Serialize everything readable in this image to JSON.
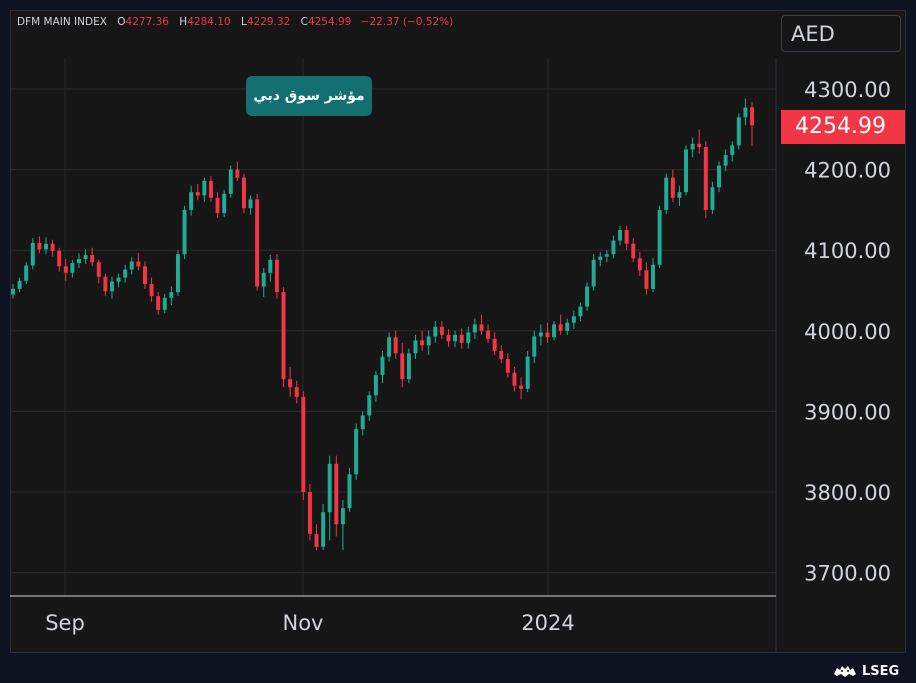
{
  "header": {
    "symbol": "DFM MAIN INDEX",
    "open_label": "O",
    "open": "4277.36",
    "high_label": "H",
    "high": "4284.10",
    "low_label": "L",
    "low": "4229.32",
    "close_label": "C",
    "close": "4254.99",
    "change": "−22.37 (−0.52%)"
  },
  "currency": "AED",
  "badge": "مؤشر سوق دبي",
  "last_price": "4254.99",
  "brand": "LSEG",
  "colors": {
    "up": "#22ab94",
    "down": "#f23645",
    "badge": "#136f72",
    "background": "#161616",
    "grid": "#2a2a2a"
  },
  "chart_data": {
    "type": "candlestick",
    "ylim": [
      3670,
      4320
    ],
    "y_ticks": [
      "4300.00",
      "4200.00",
      "4100.00",
      "4000.00",
      "3900.00",
      "3800.00",
      "3700.00"
    ],
    "x_ticks": [
      "Sep",
      "Nov",
      "2024"
    ],
    "grid": true,
    "candles": [
      [
        4045,
        4058,
        4040,
        4052
      ],
      [
        4052,
        4066,
        4048,
        4062
      ],
      [
        4062,
        4085,
        4058,
        4081
      ],
      [
        4081,
        4115,
        4076,
        4109
      ],
      [
        4109,
        4117,
        4096,
        4101
      ],
      [
        4101,
        4116,
        4095,
        4108
      ],
      [
        4108,
        4113,
        4092,
        4099
      ],
      [
        4099,
        4103,
        4073,
        4080
      ],
      [
        4080,
        4089,
        4062,
        4072
      ],
      [
        4072,
        4088,
        4066,
        4084
      ],
      [
        4084,
        4096,
        4078,
        4089
      ],
      [
        4089,
        4101,
        4083,
        4094
      ],
      [
        4094,
        4103,
        4080,
        4085
      ],
      [
        4085,
        4088,
        4059,
        4067
      ],
      [
        4067,
        4071,
        4043,
        4049
      ],
      [
        4049,
        4067,
        4040,
        4061
      ],
      [
        4061,
        4071,
        4054,
        4066
      ],
      [
        4066,
        4082,
        4060,
        4076
      ],
      [
        4076,
        4091,
        4070,
        4086
      ],
      [
        4086,
        4097,
        4075,
        4080
      ],
      [
        4080,
        4086,
        4052,
        4058
      ],
      [
        4058,
        4066,
        4036,
        4043
      ],
      [
        4043,
        4048,
        4020,
        4026
      ],
      [
        4026,
        4046,
        4022,
        4041
      ],
      [
        4041,
        4055,
        4032,
        4048
      ],
      [
        4048,
        4100,
        4043,
        4095
      ],
      [
        4095,
        4155,
        4089,
        4150
      ],
      [
        4150,
        4180,
        4143,
        4172
      ],
      [
        4172,
        4182,
        4162,
        4168
      ],
      [
        4168,
        4190,
        4160,
        4186
      ],
      [
        4186,
        4192,
        4160,
        4165
      ],
      [
        4165,
        4172,
        4140,
        4146
      ],
      [
        4146,
        4175,
        4141,
        4170
      ],
      [
        4170,
        4205,
        4165,
        4200
      ],
      [
        4200,
        4210,
        4186,
        4190
      ],
      [
        4190,
        4195,
        4146,
        4152
      ],
      [
        4152,
        4168,
        4144,
        4163
      ],
      [
        4163,
        4170,
        4050,
        4055
      ],
      [
        4055,
        4078,
        4042,
        4072
      ],
      [
        4072,
        4094,
        4061,
        4088
      ],
      [
        4088,
        4095,
        4040,
        4048
      ],
      [
        4048,
        4054,
        3930,
        3940
      ],
      [
        3940,
        3955,
        3918,
        3930
      ],
      [
        3930,
        3938,
        3910,
        3918
      ],
      [
        3918,
        3925,
        3790,
        3800
      ],
      [
        3800,
        3810,
        3740,
        3748
      ],
      [
        3748,
        3760,
        3728,
        3732
      ],
      [
        3732,
        3785,
        3728,
        3775
      ],
      [
        3775,
        3845,
        3740,
        3835
      ],
      [
        3835,
        3845,
        3745,
        3760
      ],
      [
        3760,
        3790,
        3728,
        3780
      ],
      [
        3780,
        3830,
        3775,
        3822
      ],
      [
        3822,
        3885,
        3815,
        3878
      ],
      [
        3878,
        3900,
        3870,
        3895
      ],
      [
        3895,
        3925,
        3888,
        3920
      ],
      [
        3920,
        3950,
        3912,
        3945
      ],
      [
        3945,
        3975,
        3935,
        3968
      ],
      [
        3968,
        3998,
        3962,
        3992
      ],
      [
        3992,
        4000,
        3965,
        3972
      ],
      [
        3972,
        3985,
        3930,
        3940
      ],
      [
        3940,
        3978,
        3935,
        3972
      ],
      [
        3972,
        3995,
        3965,
        3988
      ],
      [
        3988,
        4000,
        3975,
        3982
      ],
      [
        3982,
        4000,
        3970,
        3993
      ],
      [
        3993,
        4012,
        3985,
        4005
      ],
      [
        4005,
        4012,
        3990,
        3995
      ],
      [
        3995,
        4002,
        3980,
        3987
      ],
      [
        3987,
        4000,
        3980,
        3995
      ],
      [
        3995,
        4003,
        3978,
        3985
      ],
      [
        3985,
        4005,
        3978,
        3998
      ],
      [
        3998,
        4015,
        3990,
        4008
      ],
      [
        4008,
        4020,
        3995,
        4000
      ],
      [
        4000,
        4008,
        3985,
        3990
      ],
      [
        3990,
        3998,
        3970,
        3975
      ],
      [
        3975,
        3982,
        3960,
        3965
      ],
      [
        3965,
        3972,
        3942,
        3948
      ],
      [
        3948,
        3955,
        3925,
        3932
      ],
      [
        3932,
        3942,
        3915,
        3928
      ],
      [
        3928,
        3975,
        3924,
        3968
      ],
      [
        3968,
        4000,
        3960,
        3993
      ],
      [
        3993,
        4008,
        3982,
        3998
      ],
      [
        3998,
        4010,
        3985,
        3992
      ],
      [
        3992,
        4012,
        3988,
        4008
      ],
      [
        4008,
        4020,
        3995,
        4000
      ],
      [
        4000,
        4015,
        3995,
        4010
      ],
      [
        4010,
        4025,
        4002,
        4018
      ],
      [
        4018,
        4035,
        4012,
        4030
      ],
      [
        4030,
        4060,
        4025,
        4055
      ],
      [
        4055,
        4095,
        4050,
        4088
      ],
      [
        4088,
        4098,
        4080,
        4092
      ],
      [
        4092,
        4100,
        4085,
        4095
      ],
      [
        4095,
        4118,
        4090,
        4112
      ],
      [
        4112,
        4130,
        4106,
        4125
      ],
      [
        4125,
        4130,
        4100,
        4108
      ],
      [
        4108,
        4115,
        4085,
        4090
      ],
      [
        4090,
        4098,
        4068,
        4075
      ],
      [
        4075,
        4085,
        4045,
        4052
      ],
      [
        4052,
        4090,
        4048,
        4082
      ],
      [
        4082,
        4155,
        4078,
        4150
      ],
      [
        4150,
        4195,
        4145,
        4190
      ],
      [
        4190,
        4200,
        4160,
        4165
      ],
      [
        4165,
        4180,
        4155,
        4172
      ],
      [
        4172,
        4230,
        4168,
        4225
      ],
      [
        4225,
        4240,
        4215,
        4232
      ],
      [
        4232,
        4250,
        4220,
        4228
      ],
      [
        4228,
        4235,
        4140,
        4150
      ],
      [
        4150,
        4185,
        4145,
        4178
      ],
      [
        4178,
        4210,
        4172,
        4205
      ],
      [
        4205,
        4225,
        4198,
        4218
      ],
      [
        4218,
        4235,
        4210,
        4230
      ],
      [
        4230,
        4270,
        4225,
        4265
      ],
      [
        4265,
        4288,
        4255,
        4277
      ],
      [
        4277.36,
        4284.1,
        4229.32,
        4254.99
      ]
    ]
  }
}
